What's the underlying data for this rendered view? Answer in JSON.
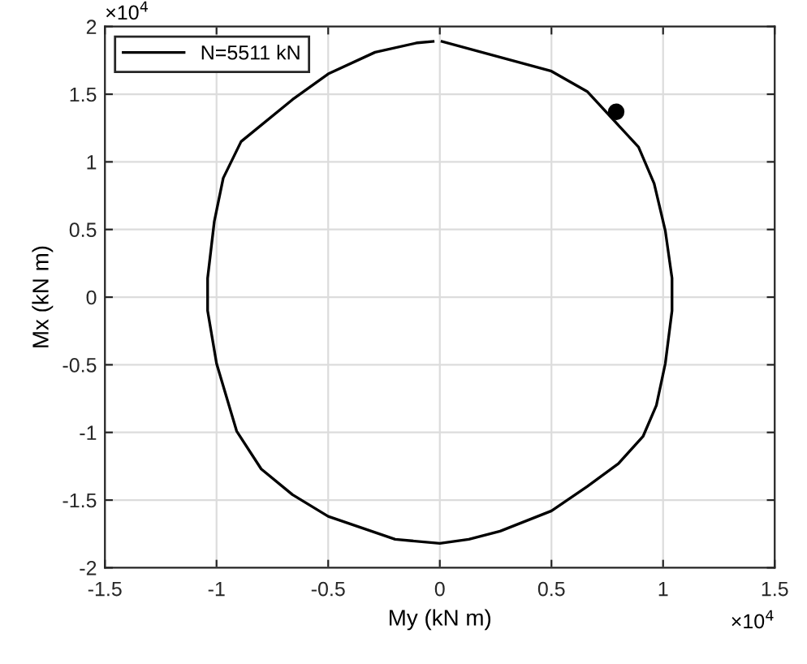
{
  "chart_data": {
    "type": "line",
    "xlabel": "My (kN m)",
    "ylabel": "Mx (kN m)",
    "annotations": [
      "×10$^{4}$",
      "×10$^{4}$"
    ],
    "xlim": [
      -1.5,
      1.5
    ],
    "xticks": [
      -1.5,
      -1,
      -0.5,
      0,
      0.5,
      1,
      1.5
    ],
    "ylim": [
      -2,
      2
    ],
    "yticks": [
      -2,
      -1.5,
      -1,
      -0.5,
      0,
      0.5,
      1,
      1.5,
      2
    ],
    "grid": true,
    "legend": "top left",
    "series": [
      {
        "name": "N=5511 kN",
        "color": "#000000",
        "marker": "none",
        "x": [
          0.01,
          0.5,
          0.66,
          0.89,
          0.96,
          1.01,
          1.04,
          1.04,
          1.01,
          0.97,
          0.91,
          0.8,
          0.66,
          0.5,
          0.27,
          0.13,
          0,
          -0.2,
          -0.5,
          -0.66,
          -0.8,
          -0.91,
          -1,
          -1.04,
          -1.04,
          -1.01,
          -0.97,
          -0.89,
          -0.66,
          -0.5,
          -0.29,
          -0.1,
          -0.03
        ],
        "values": [
          1.89,
          1.67,
          1.52,
          1.11,
          0.84,
          0.49,
          0.14,
          -0.1,
          -0.49,
          -0.8,
          -1.03,
          -1.23,
          -1.4,
          -1.58,
          -1.73,
          -1.79,
          -1.82,
          -1.79,
          -1.62,
          -1.46,
          -1.27,
          -0.99,
          -0.49,
          -0.1,
          0.14,
          0.56,
          0.88,
          1.15,
          1.46,
          1.65,
          1.81,
          1.88,
          1.89
        ]
      },
      {
        "type": "scatter",
        "color": "#000000",
        "marker": "circle",
        "x": [
          0.79
        ],
        "values": [
          1.37
        ]
      }
    ]
  }
}
